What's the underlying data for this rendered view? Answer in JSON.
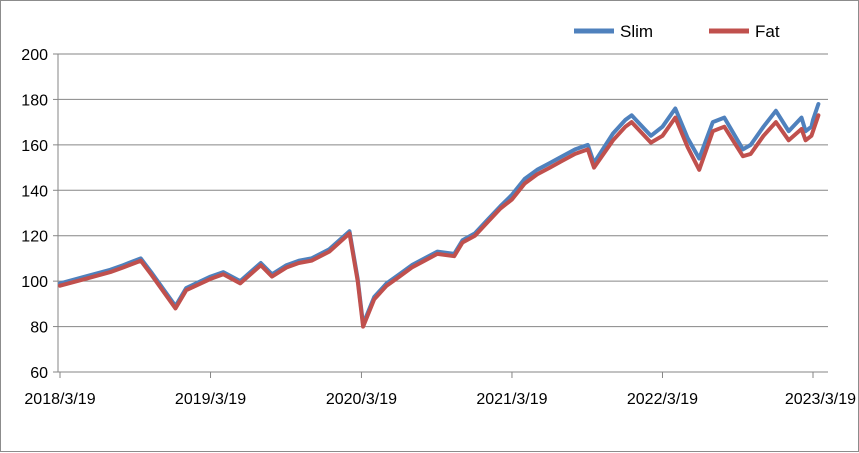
{
  "chart_data": {
    "type": "line",
    "title": "",
    "xlabel": "",
    "ylabel": "",
    "ylim": [
      60,
      200
    ],
    "yticks": [
      "60",
      "80",
      "100",
      "120",
      "140",
      "160",
      "180",
      "200"
    ],
    "xticks": [
      "2018/3/19",
      "2019/3/19",
      "2020/3/19",
      "2021/3/19",
      "2022/3/19",
      "2023/3/19"
    ],
    "grid": "horizontal",
    "legend_position": "top-right",
    "x": [
      "2018/3/19",
      "2018/5/19",
      "2018/7/19",
      "2018/8/19",
      "2018/10/1",
      "2018/10/26",
      "2018/12/24",
      "2019/1/19",
      "2019/3/19",
      "2019/4/19",
      "2019/5/30",
      "2019/7/19",
      "2019/8/15",
      "2019/9/19",
      "2019/10/19",
      "2019/11/19",
      "2020/1/1",
      "2020/2/19",
      "2020/3/10",
      "2020/3/23",
      "2020/4/19",
      "2020/5/19",
      "2020/6/19",
      "2020/7/19",
      "2020/8/19",
      "2020/9/19",
      "2020/10/30",
      "2020/11/19",
      "2020/12/19",
      "2021/1/19",
      "2021/2/19",
      "2021/3/19",
      "2021/4/19",
      "2021/5/19",
      "2021/6/19",
      "2021/7/19",
      "2021/8/19",
      "2021/9/19",
      "2021/10/4",
      "2021/11/19",
      "2021/12/19",
      "2022/1/3",
      "2022/2/19",
      "2022/3/19",
      "2022/4/19",
      "2022/5/19",
      "2022/6/16",
      "2022/7/19",
      "2022/8/16",
      "2022/9/30",
      "2022/10/19",
      "2022/11/19",
      "2022/12/19",
      "2023/1/19",
      "2023/2/19",
      "2023/3/1",
      "2023/3/15",
      "2023/3/19",
      "2023/4/1"
    ],
    "series": [
      {
        "name": "Slim",
        "color": "#4f81bd",
        "values": [
          99,
          102,
          105,
          107,
          110,
          104,
          89,
          97,
          102,
          104,
          100,
          108,
          103,
          107,
          109,
          110,
          114,
          122,
          101,
          81,
          93,
          99,
          103,
          107,
          110,
          113,
          112,
          118,
          121,
          127,
          133,
          138,
          145,
          149,
          152,
          155,
          158,
          160,
          152,
          165,
          171,
          173,
          164,
          168,
          176,
          163,
          154,
          170,
          172,
          158,
          160,
          168,
          175,
          166,
          172,
          166,
          168,
          171,
          178
        ]
      },
      {
        "name": "Fat",
        "color": "#c0504d",
        "values": [
          98,
          101,
          104,
          106,
          109,
          103,
          88,
          96,
          101,
          103,
          99,
          107,
          102,
          106,
          108,
          109,
          113,
          121,
          100,
          80,
          92,
          98,
          102,
          106,
          109,
          112,
          111,
          117,
          120,
          126,
          132,
          136,
          143,
          147,
          150,
          153,
          156,
          158,
          150,
          162,
          168,
          170,
          161,
          164,
          172,
          159,
          149,
          166,
          168,
          155,
          156,
          164,
          170,
          162,
          167,
          162,
          164,
          166,
          173
        ]
      }
    ]
  },
  "legend": {
    "items": [
      {
        "label": "Slim",
        "color": "#4f81bd"
      },
      {
        "label": "Fat",
        "color": "#c0504d"
      }
    ]
  }
}
